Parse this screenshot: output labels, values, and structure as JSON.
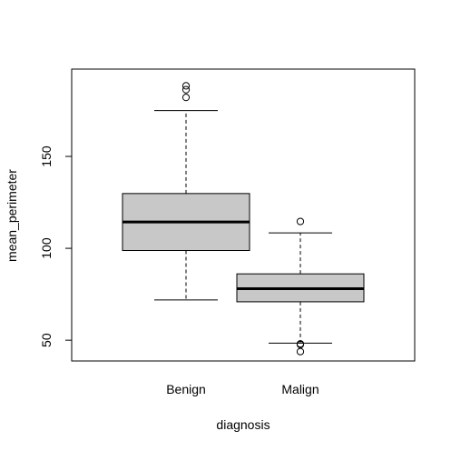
{
  "chart_data": {
    "type": "boxplot",
    "title": "",
    "xlabel": "diagnosis",
    "ylabel": "mean_perimeter",
    "ylim": [
      38.7,
      197.5
    ],
    "yticks": [
      50,
      100,
      150
    ],
    "ytick_labels": [
      "50",
      "100",
      "150"
    ],
    "grid": false,
    "legend": "none",
    "categories": [
      "Benign",
      "Malign"
    ],
    "boxes": [
      {
        "category": "Benign",
        "whisker_low": 71.9,
        "q1": 98.8,
        "median": 114.3,
        "q3": 129.8,
        "whisker_high": 174.9,
        "outliers": [
          182.1,
          186.3,
          188.4
        ]
      },
      {
        "category": "Malign",
        "whisker_low": 48.4,
        "q1": 70.9,
        "median": 78.0,
        "q3": 86.1,
        "whisker_high": 108.4,
        "outliers": [
          114.6,
          48.0,
          47.6,
          43.8
        ]
      }
    ],
    "colors": {
      "box_fill": "#c8c8c8",
      "stroke": "#000000"
    }
  }
}
